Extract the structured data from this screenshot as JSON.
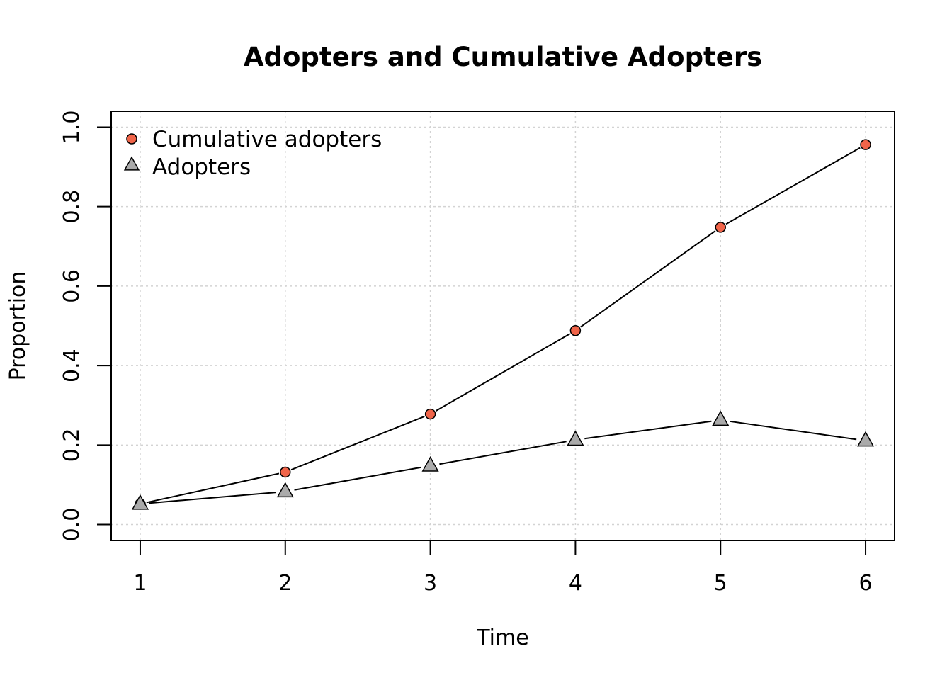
{
  "chart_data": {
    "type": "line",
    "title": "Adopters and Cumulative Adopters",
    "xlabel": "Time",
    "ylabel": "Proportion",
    "x": [
      1,
      2,
      3,
      4,
      5,
      6
    ],
    "xticks": [
      "1",
      "2",
      "3",
      "4",
      "5",
      "6"
    ],
    "yticks": [
      "0.0",
      "0.2",
      "0.4",
      "0.6",
      "0.8",
      "1.0"
    ],
    "xlim": [
      0.8,
      6.2
    ],
    "ylim": [
      -0.04,
      1.04
    ],
    "grid": true,
    "legend_position": "top-left",
    "series": [
      {
        "name": "Cumulative adopters",
        "marker": "circle",
        "color": "#f06449",
        "values": [
          0.052,
          0.132,
          0.278,
          0.488,
          0.748,
          0.956
        ]
      },
      {
        "name": "Adopters",
        "marker": "triangle",
        "color": "#aaaaaa",
        "values": [
          0.052,
          0.083,
          0.148,
          0.213,
          0.263,
          0.211
        ]
      }
    ]
  }
}
